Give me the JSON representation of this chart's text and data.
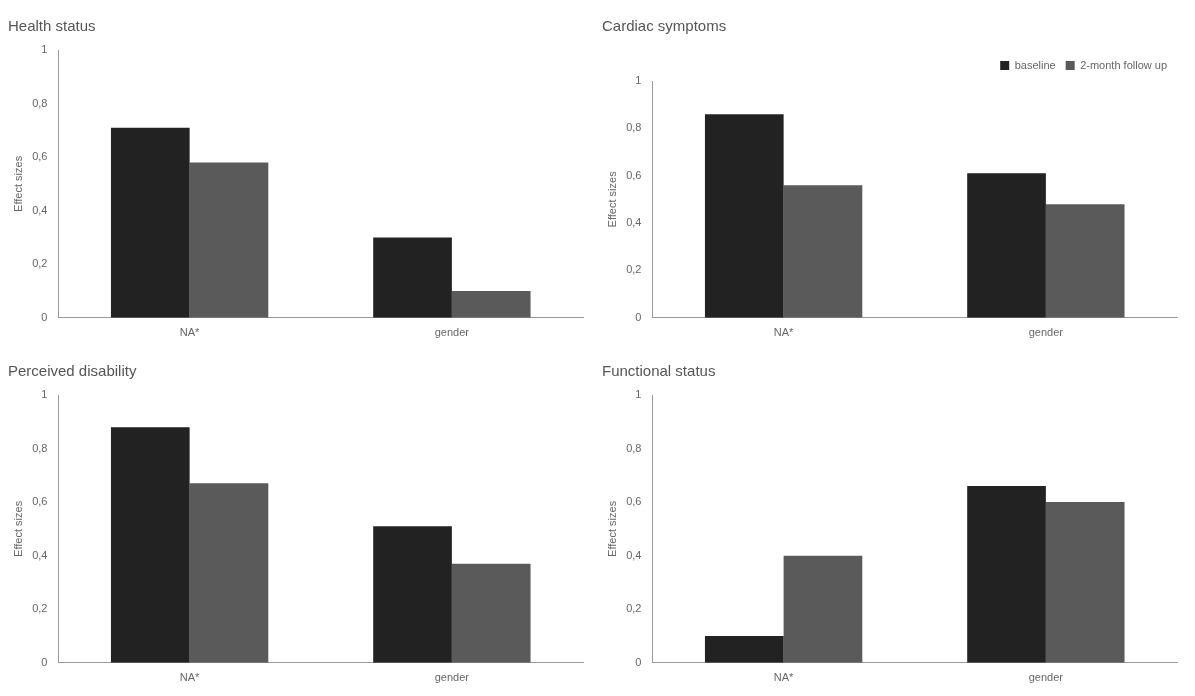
{
  "chart_data": [
    {
      "type": "bar",
      "title": "Health status",
      "ylabel": "Effect sizes",
      "categories": [
        "NA*",
        "gender"
      ],
      "series": [
        {
          "color": "#222222",
          "values": [
            0.71,
            0.3
          ]
        },
        {
          "color": "#5a5a5a",
          "values": [
            0.58,
            0.1
          ]
        }
      ],
      "ylim": [
        0,
        1
      ],
      "yticks": [
        {
          "value": 0,
          "label": "0"
        },
        {
          "value": 0.2,
          "label": "0,2"
        },
        {
          "value": 0.4,
          "label": "0,4"
        },
        {
          "value": 0.6,
          "label": "0,6"
        },
        {
          "value": 0.8,
          "label": "0,8"
        },
        {
          "value": 1,
          "label": "1"
        }
      ],
      "grid": false,
      "legend": false
    },
    {
      "type": "bar",
      "title": "Cardiac symptoms",
      "ylabel": "Effect sizes",
      "categories": [
        "NA*",
        "gender"
      ],
      "series": [
        {
          "name": "baseline",
          "color": "#222222",
          "values": [
            0.86,
            0.61
          ]
        },
        {
          "name": "2-month follow up",
          "color": "#5a5a5a",
          "values": [
            0.56,
            0.48
          ]
        }
      ],
      "ylim": [
        0,
        1
      ],
      "yticks": [
        {
          "value": 0,
          "label": "0"
        },
        {
          "value": 0.2,
          "label": "0,2"
        },
        {
          "value": 0.4,
          "label": "0,4"
        },
        {
          "value": 0.6,
          "label": "0,6"
        },
        {
          "value": 0.8,
          "label": "0,8"
        },
        {
          "value": 1,
          "label": "1"
        }
      ],
      "grid": false,
      "legend": "top right"
    },
    {
      "type": "bar",
      "title": "Perceived disability",
      "ylabel": "Effect sizes",
      "categories": [
        "NA*",
        "gender"
      ],
      "series": [
        {
          "color": "#222222",
          "values": [
            0.88,
            0.51
          ]
        },
        {
          "color": "#5a5a5a",
          "values": [
            0.67,
            0.37
          ]
        }
      ],
      "ylim": [
        0,
        1
      ],
      "yticks": [
        {
          "value": 0,
          "label": "0"
        },
        {
          "value": 0.2,
          "label": "0,2"
        },
        {
          "value": 0.4,
          "label": "0,4"
        },
        {
          "value": 0.6,
          "label": "0,6"
        },
        {
          "value": 0.8,
          "label": "0,8"
        },
        {
          "value": 1,
          "label": "1"
        }
      ],
      "grid": false,
      "legend": false
    },
    {
      "type": "bar",
      "title": "Functional status",
      "ylabel": "Effect sizes",
      "categories": [
        "NA*",
        "gender"
      ],
      "series": [
        {
          "color": "#222222",
          "values": [
            0.1,
            0.66
          ]
        },
        {
          "color": "#5a5a5a",
          "values": [
            0.4,
            0.6
          ]
        }
      ],
      "ylim": [
        0,
        1
      ],
      "yticks": [
        {
          "value": 0,
          "label": "0"
        },
        {
          "value": 0.2,
          "label": "0,2"
        },
        {
          "value": 0.4,
          "label": "0,4"
        },
        {
          "value": 0.6,
          "label": "0,6"
        },
        {
          "value": 0.8,
          "label": "0,8"
        },
        {
          "value": 1,
          "label": "1"
        }
      ],
      "grid": false,
      "legend": false
    }
  ]
}
